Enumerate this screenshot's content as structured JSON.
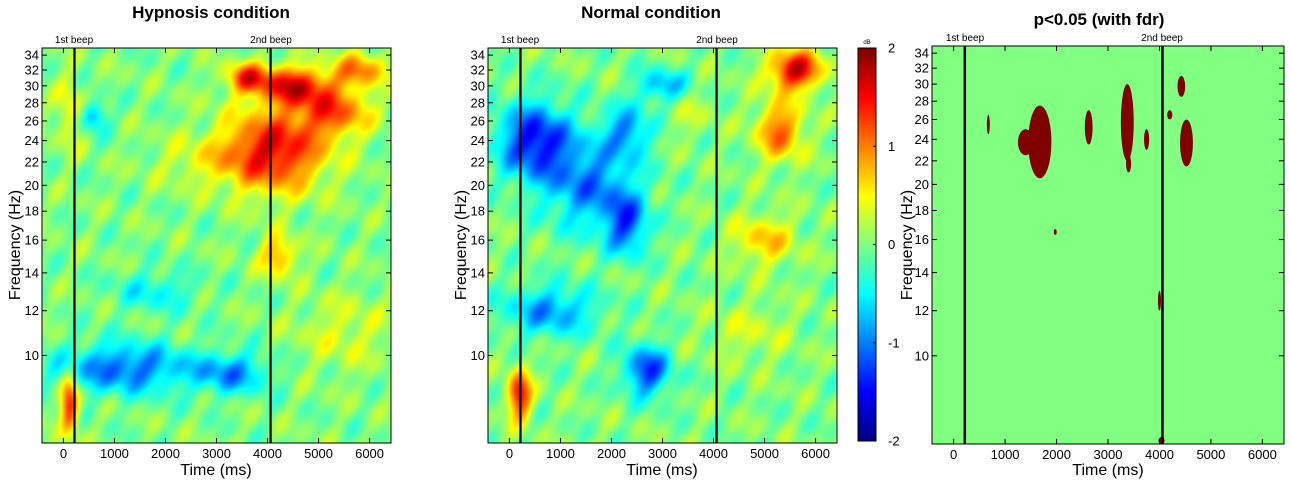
{
  "figure": {
    "colorbar": {
      "unit": "dB",
      "ticks": [
        "2",
        "1",
        "0",
        "-1",
        "-2"
      ],
      "range": [
        -2,
        2
      ],
      "colormap": "jet"
    },
    "significance_colors": {
      "background": "#80ff80",
      "significant": "#800000"
    }
  },
  "chart_data": [
    {
      "type": "heatmap",
      "title": "Hypnosis condition",
      "xlabel": "Time (ms)",
      "ylabel": "Frequency (Hz)",
      "xlim": [
        -420,
        6420
      ],
      "ylim": [
        7,
        35
      ],
      "yscale": "log",
      "xticks": [
        "0",
        "1000",
        "2000",
        "3000",
        "4000",
        "5000",
        "6000"
      ],
      "yticks": [
        "10",
        "12",
        "14",
        "16",
        "18",
        "20",
        "22",
        "24",
        "26",
        "28",
        "30",
        "32",
        "34"
      ],
      "events": [
        {
          "label": "1st beep",
          "x": 0
        },
        {
          "label": "2nd beep",
          "x": 3950
        }
      ],
      "clim": [
        -2,
        2
      ],
      "blobs": [
        {
          "x": 4100,
          "y": 23,
          "rx": 1000,
          "ry": 0.16,
          "v": 1.6
        },
        {
          "x": 4500,
          "y": 30,
          "rx": 700,
          "ry": 0.08,
          "v": 1.5
        },
        {
          "x": 3600,
          "y": 31,
          "rx": 400,
          "ry": 0.06,
          "v": 1.2
        },
        {
          "x": 5300,
          "y": 27,
          "rx": 700,
          "ry": 0.1,
          "v": 1.1
        },
        {
          "x": 5800,
          "y": 32,
          "rx": 500,
          "ry": 0.07,
          "v": 1.0
        },
        {
          "x": 4200,
          "y": 15,
          "rx": 350,
          "ry": 0.08,
          "v": 0.9
        },
        {
          "x": 120,
          "y": 8.2,
          "rx": 180,
          "ry": 0.12,
          "v": 1.4
        },
        {
          "x": 120,
          "y": 27,
          "rx": 250,
          "ry": 0.15,
          "v": 0.5
        },
        {
          "x": 2600,
          "y": 22,
          "rx": 900,
          "ry": 0.1,
          "v": 0.3
        },
        {
          "x": 5500,
          "y": 11,
          "rx": 900,
          "ry": 0.15,
          "v": 0.35
        },
        {
          "x": 1200,
          "y": 9.5,
          "rx": 1300,
          "ry": 0.1,
          "v": -1.1
        },
        {
          "x": 3300,
          "y": 9.3,
          "rx": 700,
          "ry": 0.08,
          "v": -0.9
        },
        {
          "x": 600,
          "y": 26.5,
          "rx": 250,
          "ry": 0.06,
          "v": -0.8
        },
        {
          "x": 1800,
          "y": 13,
          "rx": 800,
          "ry": 0.08,
          "v": -0.5
        }
      ]
    },
    {
      "type": "heatmap",
      "title": "Normal condition",
      "xlabel": "Time (ms)",
      "ylabel": "Frequency (Hz)",
      "xlim": [
        -420,
        6420
      ],
      "ylim": [
        7,
        35
      ],
      "yscale": "log",
      "xticks": [
        "0",
        "1000",
        "2000",
        "3000",
        "4000",
        "5000",
        "6000"
      ],
      "yticks": [
        "10",
        "12",
        "14",
        "16",
        "18",
        "20",
        "22",
        "24",
        "26",
        "28",
        "30",
        "32",
        "34"
      ],
      "events": [
        {
          "label": "1st beep",
          "x": 0
        },
        {
          "label": "2nd beep",
          "x": 3950
        }
      ],
      "clim": [
        -2,
        2
      ],
      "blobs": [
        {
          "x": 500,
          "y": 24,
          "rx": 700,
          "ry": 0.15,
          "v": -1.5
        },
        {
          "x": 1600,
          "y": 20,
          "rx": 900,
          "ry": 0.18,
          "v": -1.0
        },
        {
          "x": 2300,
          "y": 17,
          "rx": 400,
          "ry": 0.12,
          "v": -1.1
        },
        {
          "x": 2300,
          "y": 25,
          "rx": 450,
          "ry": 0.1,
          "v": -0.9
        },
        {
          "x": 2700,
          "y": 9.4,
          "rx": 450,
          "ry": 0.1,
          "v": -1.3
        },
        {
          "x": 800,
          "y": 12,
          "rx": 900,
          "ry": 0.1,
          "v": -0.9
        },
        {
          "x": 3000,
          "y": 30,
          "rx": 500,
          "ry": 0.07,
          "v": -0.8
        },
        {
          "x": 200,
          "y": 8.5,
          "rx": 230,
          "ry": 0.1,
          "v": 1.5
        },
        {
          "x": 5600,
          "y": 32,
          "rx": 500,
          "ry": 0.08,
          "v": 1.7
        },
        {
          "x": 5300,
          "y": 25,
          "rx": 450,
          "ry": 0.12,
          "v": 1.1
        },
        {
          "x": 5000,
          "y": 16,
          "rx": 600,
          "ry": 0.1,
          "v": 0.7
        },
        {
          "x": 4700,
          "y": 11,
          "rx": 800,
          "ry": 0.12,
          "v": 0.3
        },
        {
          "x": 3500,
          "y": 27,
          "rx": 450,
          "ry": 0.1,
          "v": 0.25
        }
      ]
    },
    {
      "type": "heatmap",
      "title": "p<0.05 (with fdr)",
      "xlabel": "Time (ms)",
      "ylabel": "Frequency (Hz)",
      "xlim": [
        -420,
        6420
      ],
      "ylim": [
        7,
        35
      ],
      "yscale": "log",
      "xticks": [
        "0",
        "1000",
        "2000",
        "3000",
        "4000",
        "5000",
        "6000"
      ],
      "yticks": [
        "10",
        "12",
        "14",
        "16",
        "18",
        "20",
        "22",
        "24",
        "26",
        "28",
        "30",
        "32",
        "34"
      ],
      "events": [
        {
          "label": "1st beep",
          "x": 0
        },
        {
          "label": "2nd beep",
          "x": 3950
        }
      ],
      "values": [
        "not significant",
        "significant"
      ],
      "significant_regions": [
        {
          "x": [
            1450,
            1900
          ],
          "y": [
            20.5,
            27.5
          ]
        },
        {
          "x": [
            1250,
            1550
          ],
          "y": [
            22.5,
            25
          ]
        },
        {
          "x": [
            2550,
            2700
          ],
          "y": [
            23.5,
            27
          ]
        },
        {
          "x": [
            3250,
            3500
          ],
          "y": [
            22,
            30
          ]
        },
        {
          "x": [
            3350,
            3450
          ],
          "y": [
            21,
            22.5
          ]
        },
        {
          "x": [
            3700,
            3800
          ],
          "y": [
            23,
            25
          ]
        },
        {
          "x": [
            4350,
            4500
          ],
          "y": [
            28.5,
            31
          ]
        },
        {
          "x": [
            4400,
            4650
          ],
          "y": [
            21.5,
            26
          ]
        },
        {
          "x": [
            650,
            700
          ],
          "y": [
            24.5,
            26.5
          ]
        },
        {
          "x": [
            4150,
            4250
          ],
          "y": [
            26,
            27
          ]
        },
        {
          "x": [
            1950,
            2000
          ],
          "y": [
            16.3,
            16.7
          ]
        },
        {
          "x": [
            3970,
            4030
          ],
          "y": [
            12,
            13
          ]
        },
        {
          "x": [
            3980,
            4100
          ],
          "y": [
            7.0,
            7.2
          ]
        }
      ]
    }
  ]
}
